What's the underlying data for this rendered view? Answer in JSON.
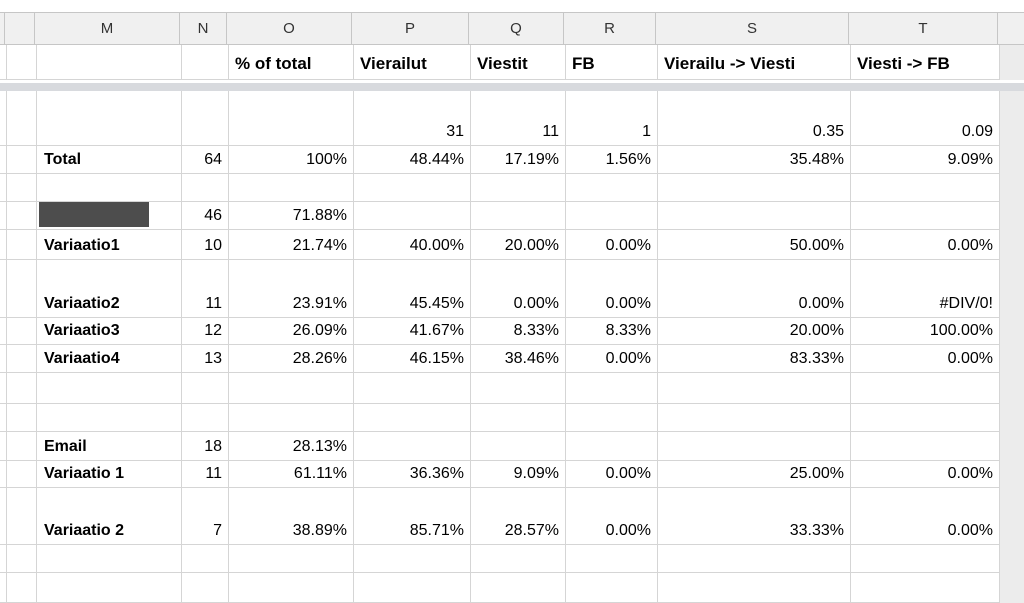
{
  "sheet": {
    "columns": [
      {
        "key": "edge",
        "label": ""
      },
      {
        "key": "pre",
        "label": ""
      },
      {
        "key": "M",
        "label": "M"
      },
      {
        "key": "N",
        "label": "N"
      },
      {
        "key": "O",
        "label": "O"
      },
      {
        "key": "P",
        "label": "P"
      },
      {
        "key": "Q",
        "label": "Q"
      },
      {
        "key": "R",
        "label": "R"
      },
      {
        "key": "S",
        "label": "S"
      },
      {
        "key": "T",
        "label": "T"
      }
    ],
    "header_labels": {
      "O": "% of total",
      "P": "Vierailut",
      "Q": "Viestit",
      "R": "FB",
      "S": "Vierailu -> Viesti",
      "T": "Viesti -> FB"
    },
    "rows": [
      {
        "name": "conversion-values",
        "cells": {
          "P": "31",
          "Q": "11",
          "R": "1",
          "S": "0.35",
          "T": "0.09"
        }
      },
      {
        "name": "total",
        "cells": {
          "M": "Total",
          "N": "64",
          "O": "100%",
          "P": "48.44%",
          "Q": "17.19%",
          "R": "1.56%",
          "S": "35.48%",
          "T": "9.09%"
        }
      },
      {
        "name": "blank",
        "cells": {}
      },
      {
        "name": "redacted-group",
        "cells": {
          "N": "46",
          "O": "71.88%"
        },
        "redacted": "M"
      },
      {
        "name": "variaatio1",
        "cells": {
          "M": "Variaatio1",
          "N": "10",
          "O": "21.74%",
          "P": "40.00%",
          "Q": "20.00%",
          "R": "0.00%",
          "S": "50.00%",
          "T": "0.00%"
        }
      },
      {
        "name": "variaatio2",
        "cells": {
          "M": "Variaatio2",
          "N": "11",
          "O": "23.91%",
          "P": "45.45%",
          "Q": "0.00%",
          "R": "0.00%",
          "S": "0.00%",
          "T": "#DIV/0!"
        },
        "comment": "T"
      },
      {
        "name": "variaatio3",
        "cells": {
          "M": "Variaatio3",
          "N": "12",
          "O": "26.09%",
          "P": "41.67%",
          "Q": "8.33%",
          "R": "8.33%",
          "S": "20.00%",
          "T": "100.00%"
        }
      },
      {
        "name": "variaatio4",
        "cells": {
          "M": "Variaatio4",
          "N": "13",
          "O": "28.26%",
          "P": "46.15%",
          "Q": "38.46%",
          "R": "0.00%",
          "S": "83.33%",
          "T": "0.00%"
        }
      },
      {
        "name": "blank",
        "cells": {}
      },
      {
        "name": "blank",
        "cells": {}
      },
      {
        "name": "email-group",
        "cells": {
          "M": "Email",
          "N": "18",
          "O": "28.13%"
        }
      },
      {
        "name": "email-variaatio-1",
        "cells": {
          "M": "Variaatio 1",
          "N": "11",
          "O": "61.11%",
          "P": "36.36%",
          "Q": "9.09%",
          "R": "0.00%",
          "S": "25.00%",
          "T": "0.00%"
        }
      },
      {
        "name": "email-variaatio-2",
        "cells": {
          "M": "Variaatio 2",
          "N": "7",
          "O": "38.89%",
          "P": "85.71%",
          "Q": "28.57%",
          "R": "0.00%",
          "S": "33.33%",
          "T": "0.00%"
        }
      },
      {
        "name": "blank",
        "cells": {}
      },
      {
        "name": "blank",
        "cells": {}
      }
    ]
  },
  "colors": {
    "grid": "#d5d5d5",
    "header_bg": "#f0f0f0",
    "header_border": "#c6c6c6",
    "header_text": "#333333",
    "divider": "#d8dade",
    "margin_bg": "#ececec",
    "redacted": "#4d4d4d",
    "comment_red": "#c5392b"
  }
}
